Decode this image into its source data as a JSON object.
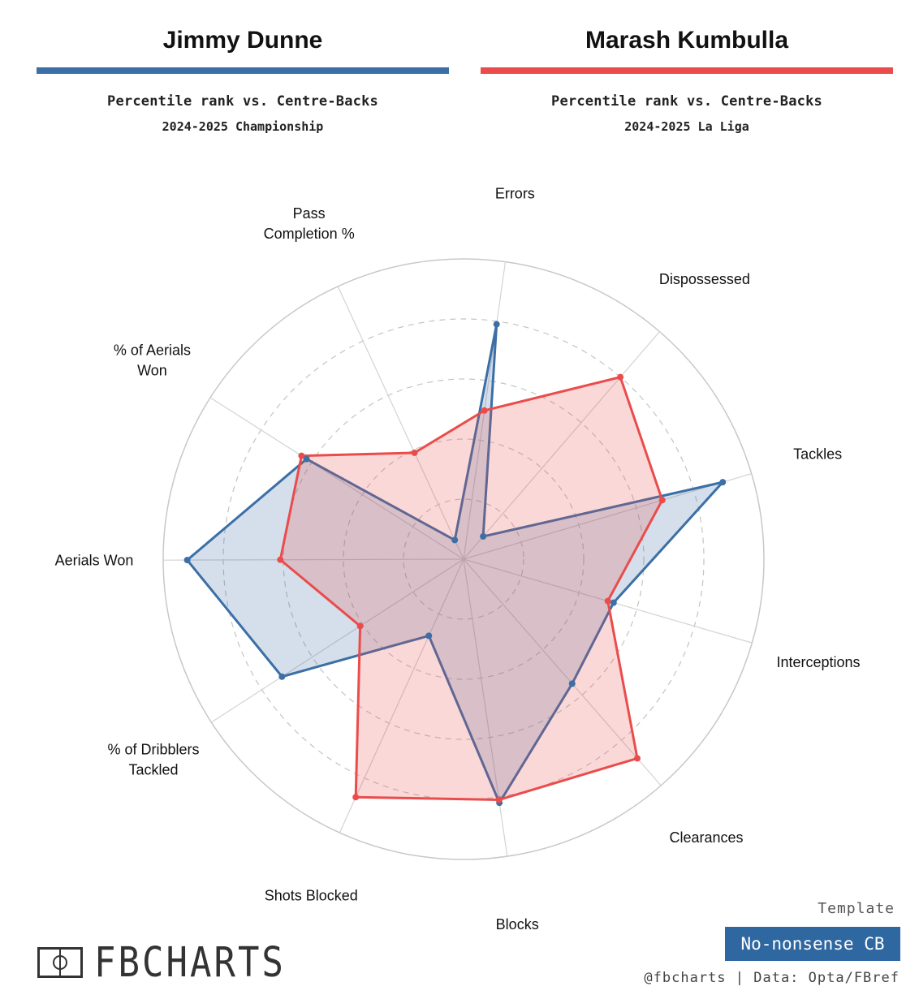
{
  "players": [
    {
      "name": "Jimmy Dunne",
      "subtitle": "Percentile rank vs. Centre-Backs",
      "competition": "2024-2025 Championship"
    },
    {
      "name": "Marash Kumbulla",
      "subtitle": "Percentile rank vs. Centre-Backs",
      "competition": "2024-2025 La Liga"
    }
  ],
  "colors": {
    "player_1": "#3b6fa6",
    "player_1_fill": "#c9d6e6",
    "player_2": "#ea4c4c",
    "player_2_fill": "#f6c4c4",
    "grid": "#d3d3d3",
    "template_badge": "#2f67a0"
  },
  "chart_data": {
    "type": "radar",
    "axes": [
      "Errors",
      "Dispossessed",
      "Tackles",
      "Interceptions",
      "Clearances",
      "Blocks",
      "Shots Blocked",
      "% of Dribblers\nTackled",
      "Aerials Won",
      "% of Aerials\nWon",
      "Pass\nCompletion %"
    ],
    "r_range": [
      0,
      100
    ],
    "rings": [
      20,
      40,
      60,
      80,
      100
    ],
    "series": [
      {
        "name": "Jimmy Dunne",
        "values": [
          79,
          10,
          90,
          52,
          55,
          82,
          28,
          72,
          92,
          62,
          7
        ]
      },
      {
        "name": "Marash Kumbulla",
        "values": [
          50,
          80,
          69,
          50,
          88,
          81,
          87,
          41,
          61,
          64,
          39
        ]
      }
    ]
  },
  "branding": {
    "logo_text": "FBCHARTS",
    "template_label": "Template",
    "template_name": "No-nonsense CB",
    "credits": "@fbcharts | Data: Opta/FBref"
  }
}
